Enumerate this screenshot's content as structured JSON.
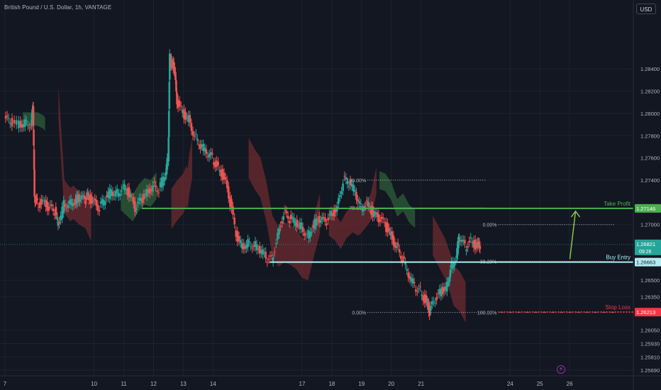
{
  "header": {
    "title": "British Pound / U.S. Dollar, 1h, VANTAGE",
    "currency": "USD"
  },
  "chart_data": {
    "type": "candlestick",
    "ylim": [
      1.2564,
      1.2902
    ],
    "y_ticks": [
      1.2569,
      1.2581,
      1.2593,
      1.2605,
      1.2635,
      1.265,
      1.27,
      1.274,
      1.276,
      1.278,
      1.28,
      1.282,
      1.284
    ],
    "x_ticks": [
      {
        "label": "7",
        "day": 7
      },
      {
        "label": "10",
        "day": 10
      },
      {
        "label": "11",
        "day": 11
      },
      {
        "label": "12",
        "day": 12
      },
      {
        "label": "13",
        "day": 13
      },
      {
        "label": "14",
        "day": 14
      },
      {
        "label": "17",
        "day": 17
      },
      {
        "label": "18",
        "day": 18
      },
      {
        "label": "19",
        "day": 19
      },
      {
        "label": "20",
        "day": 20
      },
      {
        "label": "21",
        "day": 21
      },
      {
        "label": "24",
        "day": 24
      },
      {
        "label": "25",
        "day": 25
      },
      {
        "label": "26",
        "day": 26
      }
    ],
    "price_path": [
      [
        7.0,
        1.2795
      ],
      [
        7.2,
        1.2792
      ],
      [
        7.5,
        1.279
      ],
      [
        7.7,
        1.2792
      ],
      [
        7.9,
        1.2791
      ],
      [
        7.95,
        1.281
      ],
      [
        8.0,
        1.2725
      ],
      [
        8.1,
        1.2718
      ],
      [
        8.3,
        1.272
      ],
      [
        8.5,
        1.2715
      ],
      [
        8.7,
        1.2712
      ],
      [
        8.8,
        1.27
      ],
      [
        9.0,
        1.2718
      ],
      [
        9.2,
        1.272
      ],
      [
        9.4,
        1.2722
      ],
      [
        9.5,
        1.2724
      ],
      [
        9.7,
        1.2722
      ],
      [
        9.8,
        1.2725
      ],
      [
        10.0,
        1.272
      ],
      [
        10.2,
        1.2715
      ],
      [
        10.4,
        1.2724
      ],
      [
        10.6,
        1.273
      ],
      [
        10.8,
        1.2728
      ],
      [
        11.0,
        1.2735
      ],
      [
        11.2,
        1.2728
      ],
      [
        11.4,
        1.2714
      ],
      [
        11.6,
        1.2722
      ],
      [
        11.8,
        1.2728
      ],
      [
        12.0,
        1.2735
      ],
      [
        12.2,
        1.2732
      ],
      [
        12.4,
        1.2745
      ],
      [
        12.5,
        1.276
      ],
      [
        12.55,
        1.285
      ],
      [
        12.6,
        1.2845
      ],
      [
        12.7,
        1.2842
      ],
      [
        12.8,
        1.281
      ],
      [
        13.0,
        1.28
      ],
      [
        13.2,
        1.2795
      ],
      [
        13.4,
        1.278
      ],
      [
        13.6,
        1.2772
      ],
      [
        13.8,
        1.2765
      ],
      [
        14.0,
        1.276
      ],
      [
        14.2,
        1.275
      ],
      [
        14.4,
        1.2742
      ],
      [
        14.6,
        1.272
      ],
      [
        14.8,
        1.269
      ],
      [
        15.0,
        1.268
      ],
      [
        15.2,
        1.2684
      ],
      [
        15.4,
        1.2682
      ],
      [
        15.6,
        1.2678
      ],
      [
        15.8,
        1.267
      ],
      [
        16.0,
        1.2668
      ],
      [
        16.2,
        1.269
      ],
      [
        16.4,
        1.271
      ],
      [
        16.6,
        1.2705
      ],
      [
        16.8,
        1.2702
      ],
      [
        17.0,
        1.2698
      ],
      [
        17.2,
        1.269
      ],
      [
        17.4,
        1.27
      ],
      [
        17.6,
        1.2705
      ],
      [
        17.8,
        1.2702
      ],
      [
        18.0,
        1.2708
      ],
      [
        18.2,
        1.2715
      ],
      [
        18.4,
        1.274
      ],
      [
        18.6,
        1.2738
      ],
      [
        18.8,
        1.273
      ],
      [
        19.0,
        1.2715
      ],
      [
        19.2,
        1.272
      ],
      [
        19.4,
        1.271
      ],
      [
        19.6,
        1.2705
      ],
      [
        19.8,
        1.27
      ],
      [
        20.0,
        1.269
      ],
      [
        20.2,
        1.268
      ],
      [
        20.4,
        1.267
      ],
      [
        20.6,
        1.2655
      ],
      [
        20.8,
        1.2645
      ],
      [
        21.0,
        1.264
      ],
      [
        21.2,
        1.263
      ],
      [
        21.3,
        1.2622
      ],
      [
        21.5,
        1.2632
      ],
      [
        21.7,
        1.264
      ],
      [
        21.9,
        1.2645
      ],
      [
        22.0,
        1.266
      ],
      [
        22.2,
        1.2672
      ],
      [
        22.3,
        1.269
      ],
      [
        22.5,
        1.268
      ],
      [
        22.7,
        1.2685
      ],
      [
        22.9,
        1.268
      ],
      [
        23.0,
        1.2682
      ]
    ],
    "levels": [
      {
        "name": "Take Profit",
        "price": 1.27146,
        "price_label": "1.27146",
        "color": "#4caf50"
      },
      {
        "name": "Buy Entry",
        "price": 1.26663,
        "price_label": "1.26663",
        "color": "#b2ebf2"
      },
      {
        "name": "Stop Loss",
        "price": 1.26213,
        "price_label": "1.26213",
        "color": "#f23645"
      }
    ],
    "current_price": {
      "value": 1.26821,
      "label": "1.26821",
      "countdown": "09:26",
      "color": "#26a69a"
    },
    "fib_left": [
      {
        "label": "100.00%",
        "price": 1.274
      },
      {
        "label": "78.60%",
        "price": 1.2715
      },
      {
        "label": "0.00%",
        "price": 1.2621
      }
    ],
    "fib_right": [
      {
        "label": "0.00%",
        "price": 1.27
      },
      {
        "label": "38.20%",
        "price": 1.2667
      },
      {
        "label": "100.00%",
        "price": 1.2621
      }
    ],
    "colors": {
      "background": "#131722",
      "up": "#26a69a",
      "down": "#ef5350",
      "cloud_bull": "#2e5e3a",
      "cloud_bear": "#6e2b30"
    }
  }
}
